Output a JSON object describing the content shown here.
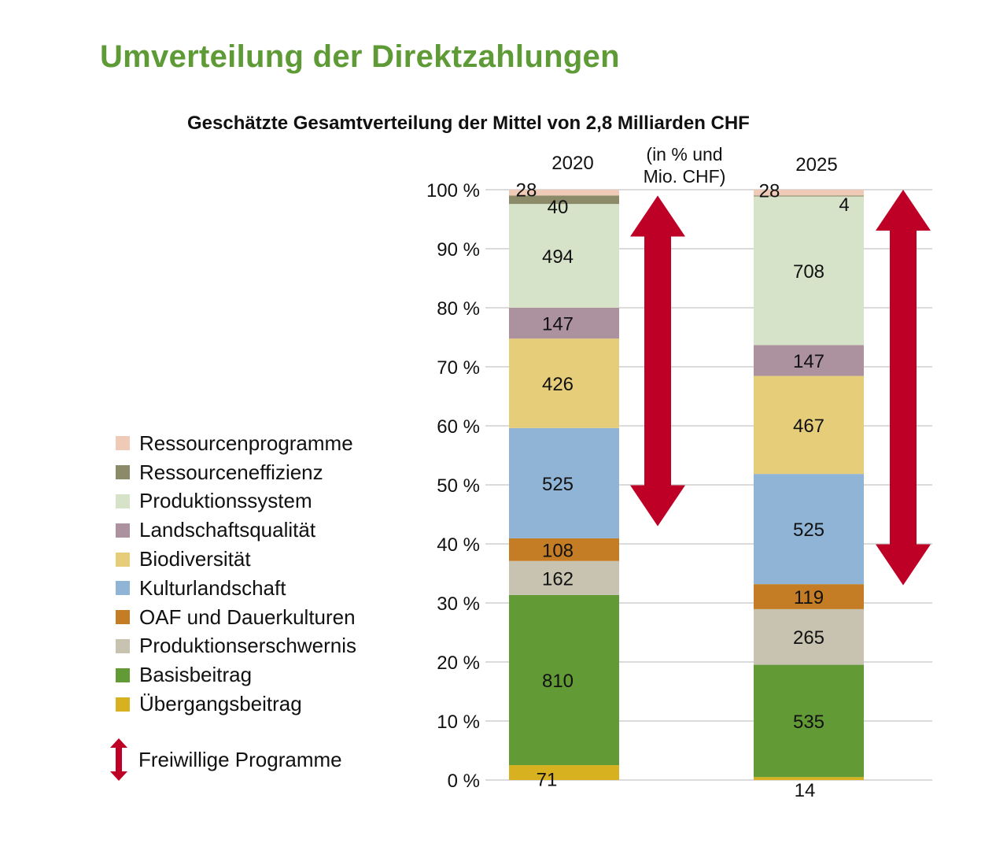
{
  "page_title": "Umverteilung der Direktzahlungen",
  "chart_data": {
    "type": "bar",
    "stacked": true,
    "normalized": true,
    "title": "Geschätzte Gesamtverteilung der Mittel von 2,8 Milliarden CHF",
    "unit_note": [
      "(in % und",
      "Mio. CHF)"
    ],
    "categories": [
      "2020",
      "2025"
    ],
    "ylabel": "",
    "xlabel": "",
    "ylim": [
      0,
      100
    ],
    "yticks": [
      0,
      10,
      20,
      30,
      40,
      50,
      60,
      70,
      80,
      90,
      100
    ],
    "ytick_labels": [
      "0 %",
      "10 %",
      "20 %",
      "30 %",
      "40 %",
      "50 %",
      "60 %",
      "70 %",
      "80 %",
      "90 %",
      "100 %"
    ],
    "grid": true,
    "legend_position": "left",
    "series": [
      {
        "name": "Übergangsbeitrag",
        "color": "#d8b120",
        "values": [
          71,
          14
        ]
      },
      {
        "name": "Basisbeitrag",
        "color": "#629a36",
        "values": [
          810,
          535
        ]
      },
      {
        "name": "Produktionserschwernis",
        "color": "#c7c3b0",
        "values": [
          162,
          265
        ]
      },
      {
        "name": "OAF und Dauerkulturen",
        "color": "#c47d24",
        "values": [
          108,
          119
        ]
      },
      {
        "name": "Kulturlandschaft",
        "color": "#8fb4d5",
        "values": [
          525,
          525
        ]
      },
      {
        "name": "Biodiversität",
        "color": "#e6cd7a",
        "values": [
          426,
          467
        ]
      },
      {
        "name": "Landschaftsqualität",
        "color": "#ab929e",
        "values": [
          147,
          147
        ]
      },
      {
        "name": "Produktionssystem",
        "color": "#d7e3c9",
        "values": [
          494,
          708
        ]
      },
      {
        "name": "Ressourceneffizienz",
        "color": "#8b8b69",
        "values": [
          40,
          4
        ]
      },
      {
        "name": "Ressourcenprogramme",
        "color": "#efcab6",
        "values": [
          28,
          28
        ]
      }
    ],
    "annotations": [
      {
        "type": "double-arrow",
        "bar": "2020",
        "label": "Freiwillige Programme",
        "from_pct": 43,
        "to_pct": 99,
        "color": "#be0027"
      },
      {
        "type": "double-arrow",
        "bar": "2025",
        "label": "Freiwillige Programme",
        "from_pct": 33,
        "to_pct": 100,
        "color": "#be0027"
      }
    ]
  },
  "legend": {
    "items": [
      {
        "label": "Ressourcenprogramme",
        "color": "#efcab6"
      },
      {
        "label": "Ressourceneffizienz",
        "color": "#8b8b69"
      },
      {
        "label": "Produktionssystem",
        "color": "#d7e3c9"
      },
      {
        "label": "Landschaftsqualität",
        "color": "#ab929e"
      },
      {
        "label": "Biodiversität",
        "color": "#e6cd7a"
      },
      {
        "label": "Kulturlandschaft",
        "color": "#8fb4d5"
      },
      {
        "label": "OAF und Dauerkulturen",
        "color": "#c47d24"
      },
      {
        "label": "Produktionserschwernis",
        "color": "#c7c3b0"
      },
      {
        "label": "Basisbeitrag",
        "color": "#629a36"
      },
      {
        "label": "Übergangsbeitrag",
        "color": "#d8b120"
      }
    ],
    "arrow_label": "Freiwillige Programme",
    "arrow_icon": "double-arrow-vertical",
    "arrow_color": "#be0027"
  }
}
